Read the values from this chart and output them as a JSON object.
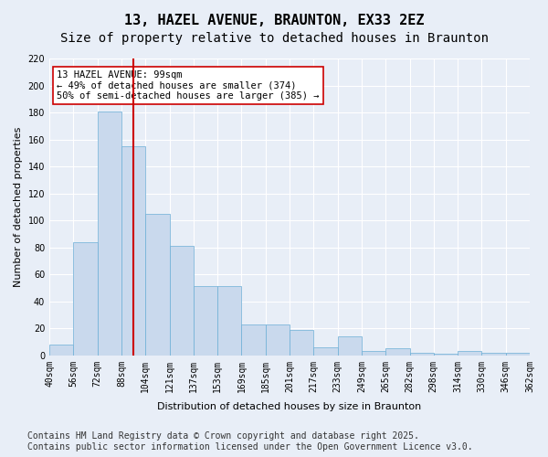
{
  "title": "13, HAZEL AVENUE, BRAUNTON, EX33 2EZ",
  "subtitle": "Size of property relative to detached houses in Braunton",
  "xlabel": "Distribution of detached houses by size in Braunton",
  "ylabel": "Number of detached properties",
  "footer_line1": "Contains HM Land Registry data © Crown copyright and database right 2025.",
  "footer_line2": "Contains public sector information licensed under the Open Government Licence v3.0.",
  "categories": [
    "40sqm",
    "56sqm",
    "72sqm",
    "88sqm",
    "104sqm",
    "121sqm",
    "137sqm",
    "153sqm",
    "169sqm",
    "185sqm",
    "201sqm",
    "217sqm",
    "233sqm",
    "249sqm",
    "265sqm",
    "282sqm",
    "298sqm",
    "314sqm",
    "330sqm",
    "346sqm",
    "362sqm"
  ],
  "values": [
    8,
    84,
    181,
    155,
    105,
    81,
    51,
    51,
    23,
    23,
    19,
    6,
    14,
    3,
    5,
    2,
    1,
    3,
    2,
    2
  ],
  "bar_color": "#c9d9ed",
  "bar_edge_color": "#6baed6",
  "vline_pos": 3.0,
  "vline_color": "#cc0000",
  "annotation_title": "13 HAZEL AVENUE: 99sqm",
  "annotation_line1": "← 49% of detached houses are smaller (374)",
  "annotation_line2": "50% of semi-detached houses are larger (385) →",
  "annotation_box_color": "#ffffff",
  "annotation_box_edge": "#cc0000",
  "ylim": [
    0,
    220
  ],
  "yticks": [
    0,
    20,
    40,
    60,
    80,
    100,
    120,
    140,
    160,
    180,
    200,
    220
  ],
  "background_color": "#e8eef7",
  "plot_bg_color": "#e8eef7",
  "grid_color": "#ffffff",
  "title_fontsize": 11,
  "subtitle_fontsize": 10,
  "axis_label_fontsize": 8,
  "tick_fontsize": 7,
  "footer_fontsize": 7
}
